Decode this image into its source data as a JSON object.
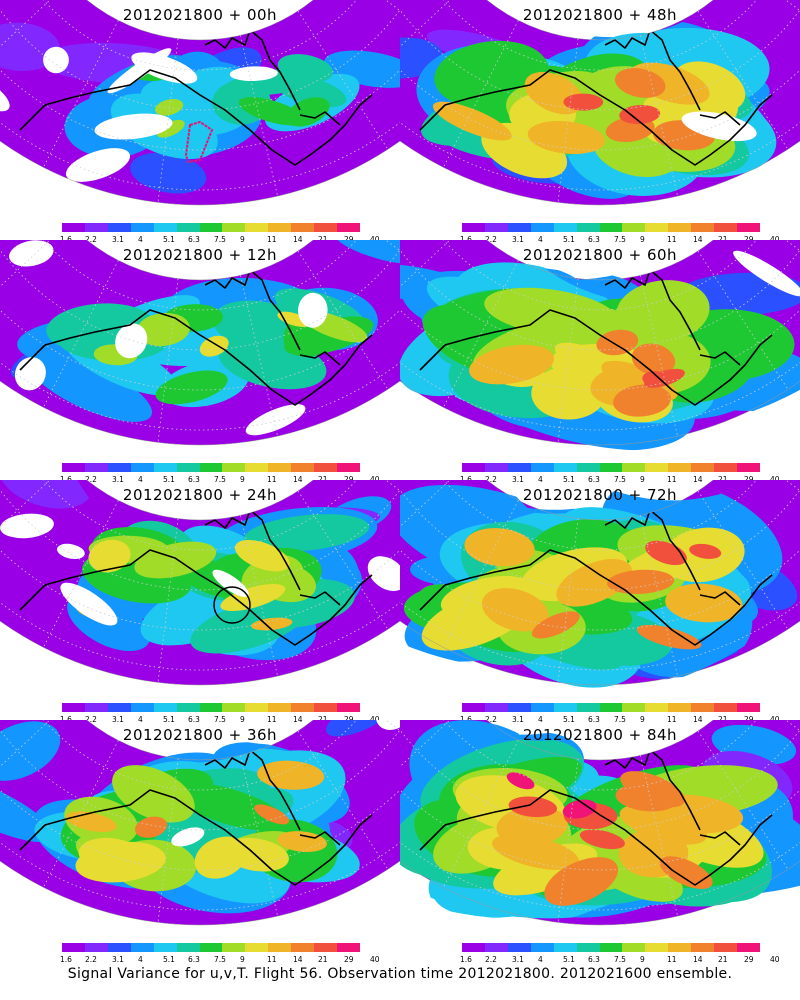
{
  "caption": "Signal Variance for u,v,T. Flight 56. Observation time 2012021800. 2012021600 ensemble.",
  "colorbar": {
    "labels": [
      "1.6",
      "2.2",
      "3.1",
      "4",
      "5.1",
      "6.3",
      "7.5",
      "9",
      "11",
      "14",
      "21",
      "29",
      "40"
    ],
    "colors": [
      "#9a00e6",
      "#8228ff",
      "#2a50ff",
      "#1496ff",
      "#1ec8f0",
      "#14c8a0",
      "#1ec832",
      "#a0dc28",
      "#e6dc32",
      "#f0b428",
      "#f0822d",
      "#f0503c",
      "#f01478"
    ]
  },
  "panels": [
    {
      "title": "2012021800 + 00h",
      "intensity": 0.25,
      "white": 0.35,
      "marker": "box"
    },
    {
      "title": "2012021800 + 48h",
      "intensity": 0.7,
      "white": 0.05,
      "marker": "none"
    },
    {
      "title": "2012021800 + 12h",
      "intensity": 0.4,
      "white": 0.3,
      "marker": "none"
    },
    {
      "title": "2012021800 + 60h",
      "intensity": 0.75,
      "white": 0.03,
      "marker": "none"
    },
    {
      "title": "2012021800 + 24h",
      "intensity": 0.5,
      "white": 0.25,
      "marker": "circle"
    },
    {
      "title": "2012021800 + 72h",
      "intensity": 0.8,
      "white": 0.02,
      "marker": "none"
    },
    {
      "title": "2012021800 + 36h",
      "intensity": 0.6,
      "white": 0.15,
      "marker": "none"
    },
    {
      "title": "2012021800 + 84h",
      "intensity": 0.85,
      "white": 0.01,
      "marker": "none"
    }
  ]
}
